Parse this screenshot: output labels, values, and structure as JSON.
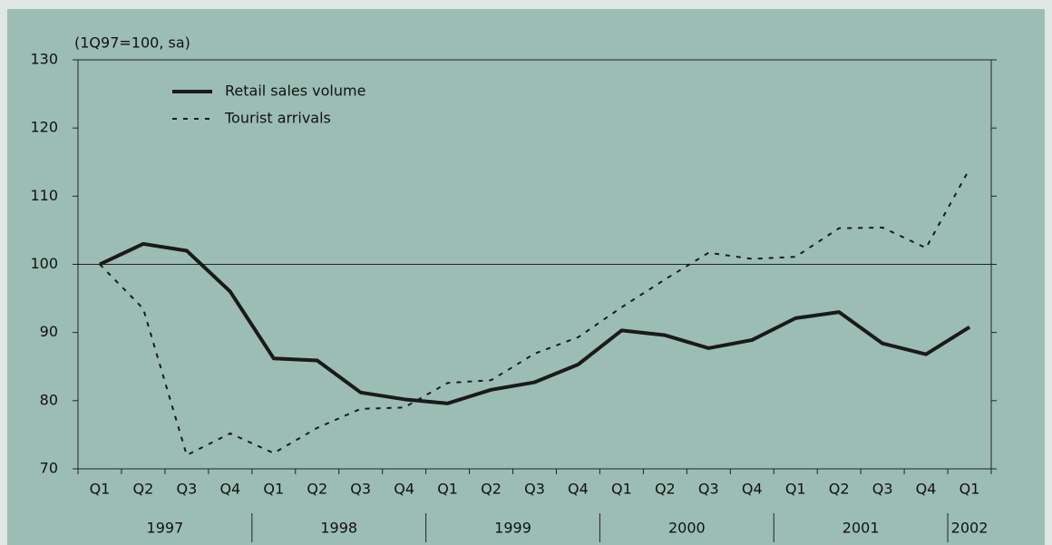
{
  "chart_data": {
    "type": "line",
    "unit_label": "(1Q97=100, sa)",
    "categories": [
      "Q1",
      "Q2",
      "Q3",
      "Q4",
      "Q1",
      "Q2",
      "Q3",
      "Q4",
      "Q1",
      "Q2",
      "Q3",
      "Q4",
      "Q1",
      "Q2",
      "Q3",
      "Q4",
      "Q1",
      "Q2",
      "Q3",
      "Q4",
      "Q1"
    ],
    "year_groups": [
      {
        "label": "1997",
        "count": 4
      },
      {
        "label": "1998",
        "count": 4
      },
      {
        "label": "1999",
        "count": 4
      },
      {
        "label": "2000",
        "count": 4
      },
      {
        "label": "2001",
        "count": 4
      },
      {
        "label": "2002",
        "count": 1
      }
    ],
    "series": [
      {
        "name": "Retail sales volume",
        "color": "#1a1a1a",
        "dashed": false,
        "values": [
          100,
          103,
          102,
          96,
          86.2,
          85.9,
          81.2,
          80.2,
          79.6,
          81.6,
          82.7,
          85.3,
          90.3,
          89.6,
          87.7,
          88.9,
          92.1,
          93.0,
          88.4,
          86.8,
          90.8
        ]
      },
      {
        "name": "Tourist arrivals",
        "color": "#1a1a1a",
        "dashed": true,
        "values": [
          100,
          93.5,
          72,
          75.2,
          72.3,
          76,
          78.8,
          79,
          82.6,
          83,
          86.9,
          89.3,
          93.7,
          97.8,
          101.7,
          100.8,
          101.1,
          105.3,
          105.4,
          102.4,
          114
        ]
      }
    ],
    "ylim": [
      70,
      130
    ],
    "yticks": [
      70,
      80,
      90,
      100,
      110,
      120,
      130
    ],
    "reference_line": 100,
    "legend": "upper-left"
  }
}
